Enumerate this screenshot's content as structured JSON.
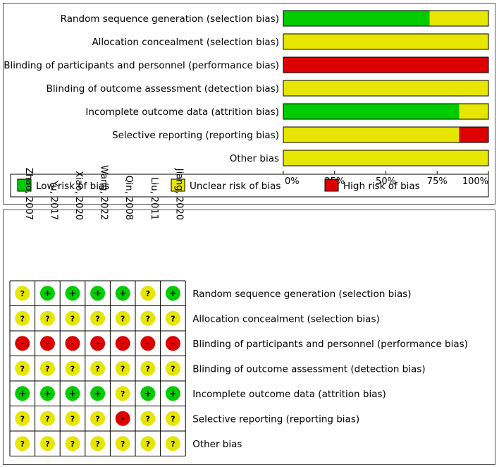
{
  "chart_data": [
    {
      "type": "bar",
      "orientation": "horizontal-stacked",
      "title": "",
      "categories": [
        "Random sequence generation (selection bias)",
        "Allocation concealment (selection bias)",
        "Blinding of participants and personnel (performance bias)",
        "Blinding of outcome assessment (detection bias)",
        "Incomplete outcome data (attrition bias)",
        "Selective reporting (reporting bias)",
        "Other bias"
      ],
      "series": [
        {
          "name": "Low risk of bias",
          "color": "#00cc00",
          "values": [
            71.4,
            0,
            0,
            0,
            85.7,
            0,
            0
          ]
        },
        {
          "name": "Unclear risk of bias",
          "color": "#e6e600",
          "values": [
            28.6,
            100,
            0,
            100,
            14.3,
            85.7,
            100
          ]
        },
        {
          "name": "High risk of bias",
          "color": "#dd0000",
          "values": [
            0,
            0,
            100,
            0,
            0,
            14.3,
            0
          ]
        }
      ],
      "xlim": [
        0,
        100
      ],
      "ticks": [
        "0%",
        "25%",
        "50%",
        "75%",
        "100%"
      ],
      "legend_position": "bottom",
      "xlabel": "",
      "ylabel": ""
    },
    {
      "type": "table",
      "title": "",
      "studies": [
        "Zhao, 2007",
        "Yu, 2017",
        "Xiao, 2020",
        "Wang, 2022",
        "Qin, 2008",
        "Liu, 2011",
        "Jiang, 2020"
      ],
      "domains": [
        "Random sequence generation (selection bias)",
        "Allocation concealment (selection bias)",
        "Blinding of participants and personnel (performance bias)",
        "Blinding of outcome assessment (detection bias)",
        "Incomplete outcome data (attrition bias)",
        "Selective reporting (reporting bias)",
        "Other bias"
      ],
      "ratings": [
        [
          "?",
          "+",
          "+",
          "+",
          "+",
          "?",
          "+"
        ],
        [
          "?",
          "?",
          "?",
          "?",
          "?",
          "?",
          "?"
        ],
        [
          "-",
          "-",
          "-",
          "-",
          "-",
          "-",
          "-"
        ],
        [
          "?",
          "?",
          "?",
          "?",
          "?",
          "?",
          "?"
        ],
        [
          "+",
          "+",
          "+",
          "+",
          "?",
          "+",
          "+"
        ],
        [
          "?",
          "?",
          "?",
          "?",
          "-",
          "?",
          "?"
        ],
        [
          "?",
          "?",
          "?",
          "?",
          "?",
          "?",
          "?"
        ]
      ],
      "rating_colors": {
        "+": "#00cc00",
        "?": "#e6e600",
        "-": "#dd0000"
      }
    }
  ]
}
